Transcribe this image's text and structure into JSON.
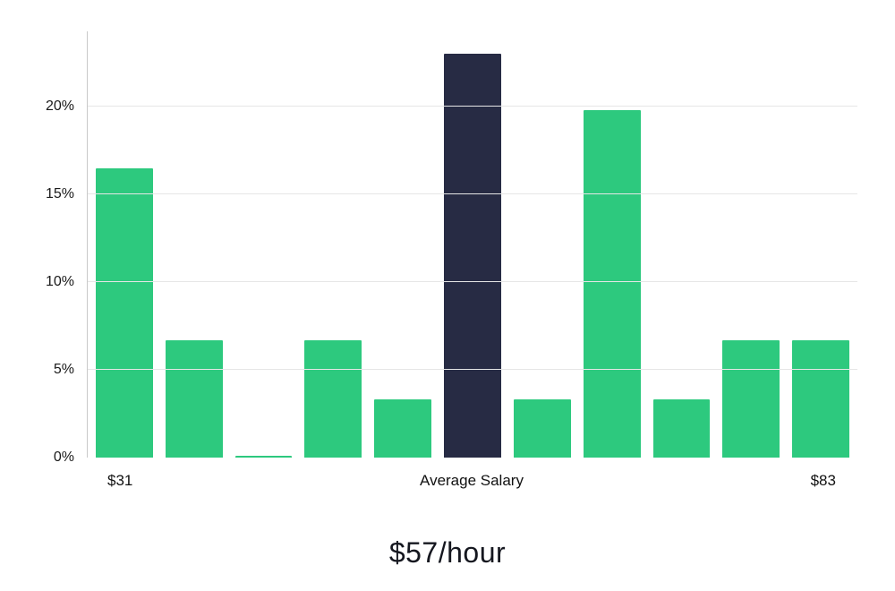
{
  "chart_data": {
    "type": "bar",
    "title": "$57/hour",
    "values": [
      16.5,
      6.7,
      0.1,
      6.7,
      3.3,
      23.0,
      3.3,
      19.8,
      3.3,
      6.7,
      6.7
    ],
    "highlight_index": 5,
    "colors": {
      "bar": "#2DC97E",
      "highlight": "#272B44",
      "grid": "#e6e6e6",
      "axis": "#c9c9c9"
    },
    "ylim": [
      0,
      24.3
    ],
    "ylabel": "",
    "xlabel": "",
    "grid": true,
    "legend": false,
    "y_ticks": [
      {
        "value": 0,
        "label": "0%"
      },
      {
        "value": 5,
        "label": "5%"
      },
      {
        "value": 10,
        "label": "10%"
      },
      {
        "value": 15,
        "label": "15%"
      },
      {
        "value": 20,
        "label": "20%"
      }
    ],
    "x_tick_labels": [
      {
        "index": 0,
        "label": "$31"
      },
      {
        "index": 5,
        "label": "Average Salary"
      },
      {
        "index": 10,
        "label": "$83"
      }
    ]
  }
}
